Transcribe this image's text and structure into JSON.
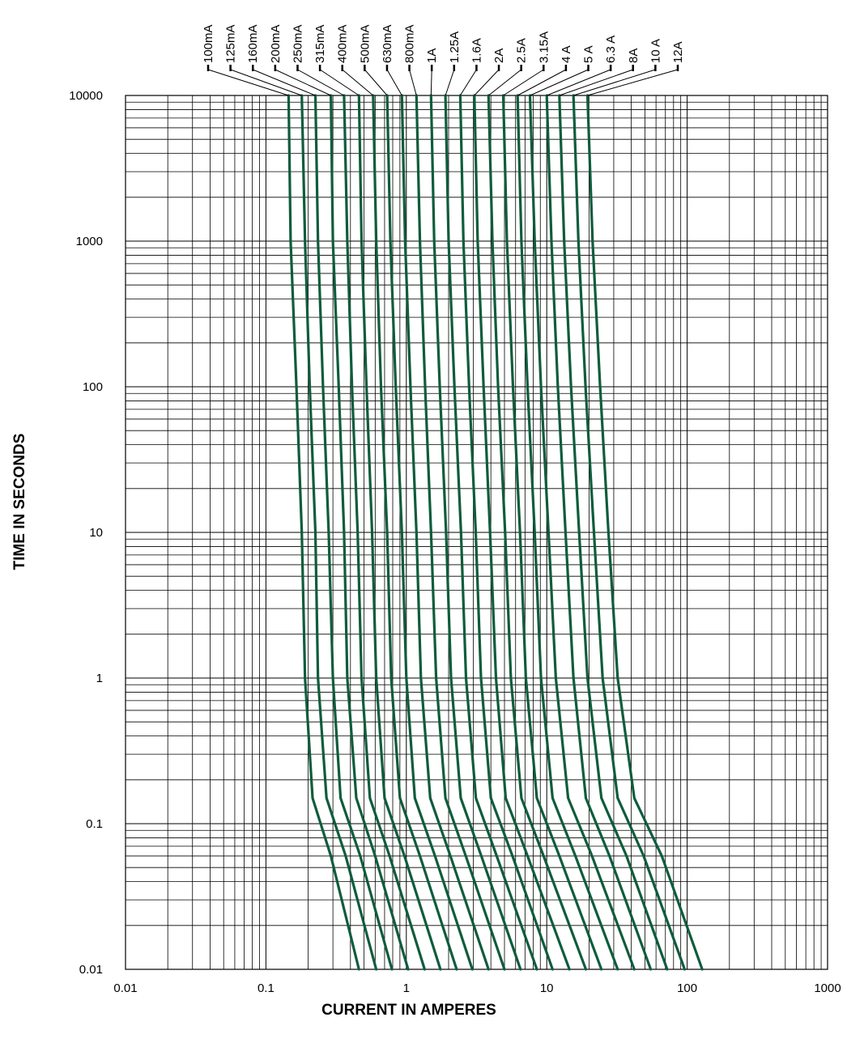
{
  "chart_data": {
    "type": "line",
    "title": "",
    "xlabel": "CURRENT IN AMPERES",
    "ylabel": "TIME IN SECONDS",
    "x_scale": "log",
    "y_scale": "log",
    "xlim": [
      0.01,
      1000
    ],
    "ylim": [
      0.01,
      10000
    ],
    "x_ticks": [
      "0.01",
      "0.1",
      "1",
      "10",
      "100",
      "1000"
    ],
    "y_ticks": [
      "0.01",
      "0.1",
      "1",
      "10",
      "100",
      "1000",
      "10000"
    ],
    "grid": true,
    "legend_placement": "top",
    "curve_color": "#0f5c3d",
    "series": [
      {
        "name": "100mA",
        "points": [
          [
            0.145,
            10000
          ],
          [
            0.15,
            1000
          ],
          [
            0.165,
            100
          ],
          [
            0.18,
            10
          ],
          [
            0.19,
            1
          ],
          [
            0.215,
            0.15
          ],
          [
            0.29,
            0.06
          ],
          [
            0.46,
            0.01
          ]
        ]
      },
      {
        "name": "125mA",
        "points": [
          [
            0.18,
            10000
          ],
          [
            0.19,
            1000
          ],
          [
            0.205,
            100
          ],
          [
            0.225,
            10
          ],
          [
            0.235,
            1
          ],
          [
            0.27,
            0.15
          ],
          [
            0.37,
            0.06
          ],
          [
            0.61,
            0.01
          ]
        ]
      },
      {
        "name": "160mA",
        "points": [
          [
            0.225,
            10000
          ],
          [
            0.235,
            1000
          ],
          [
            0.255,
            100
          ],
          [
            0.28,
            10
          ],
          [
            0.3,
            1
          ],
          [
            0.34,
            0.15
          ],
          [
            0.47,
            0.06
          ],
          [
            0.79,
            0.01
          ]
        ]
      },
      {
        "name": "200mA",
        "points": [
          [
            0.29,
            10000
          ],
          [
            0.3,
            1000
          ],
          [
            0.33,
            100
          ],
          [
            0.36,
            10
          ],
          [
            0.38,
            1
          ],
          [
            0.44,
            0.15
          ],
          [
            0.6,
            0.06
          ],
          [
            1.03,
            0.01
          ]
        ]
      },
      {
        "name": "250mA",
        "points": [
          [
            0.36,
            10000
          ],
          [
            0.38,
            1000
          ],
          [
            0.41,
            100
          ],
          [
            0.45,
            10
          ],
          [
            0.48,
            1
          ],
          [
            0.55,
            0.15
          ],
          [
            0.76,
            0.06
          ],
          [
            1.35,
            0.01
          ]
        ]
      },
      {
        "name": "315mA",
        "points": [
          [
            0.46,
            10000
          ],
          [
            0.48,
            1000
          ],
          [
            0.52,
            100
          ],
          [
            0.57,
            10
          ],
          [
            0.61,
            1
          ],
          [
            0.7,
            0.15
          ],
          [
            0.97,
            0.06
          ],
          [
            1.75,
            0.01
          ]
        ]
      },
      {
        "name": "400mA",
        "points": [
          [
            0.58,
            10000
          ],
          [
            0.61,
            1000
          ],
          [
            0.66,
            100
          ],
          [
            0.73,
            10
          ],
          [
            0.78,
            1
          ],
          [
            0.9,
            0.15
          ],
          [
            1.25,
            0.06
          ],
          [
            2.28,
            0.01
          ]
        ]
      },
      {
        "name": "500mA",
        "points": [
          [
            0.73,
            10000
          ],
          [
            0.77,
            1000
          ],
          [
            0.84,
            100
          ],
          [
            0.93,
            10
          ],
          [
            1.0,
            1
          ],
          [
            1.15,
            0.15
          ],
          [
            1.6,
            0.06
          ],
          [
            2.95,
            0.01
          ]
        ]
      },
      {
        "name": "630mA",
        "points": [
          [
            0.93,
            10000
          ],
          [
            0.98,
            1000
          ],
          [
            1.07,
            100
          ],
          [
            1.18,
            10
          ],
          [
            1.27,
            1
          ],
          [
            1.48,
            0.15
          ],
          [
            2.06,
            0.06
          ],
          [
            3.85,
            0.01
          ]
        ]
      },
      {
        "name": "800mA",
        "points": [
          [
            1.18,
            10000
          ],
          [
            1.25,
            1000
          ],
          [
            1.36,
            100
          ],
          [
            1.5,
            10
          ],
          [
            1.63,
            1
          ],
          [
            1.9,
            0.15
          ],
          [
            2.65,
            0.06
          ],
          [
            5.0,
            0.01
          ]
        ]
      },
      {
        "name": "1A",
        "points": [
          [
            1.5,
            10000
          ],
          [
            1.58,
            1000
          ],
          [
            1.73,
            100
          ],
          [
            1.92,
            10
          ],
          [
            2.08,
            1
          ],
          [
            2.44,
            0.15
          ],
          [
            3.42,
            0.06
          ],
          [
            6.5,
            0.01
          ]
        ]
      },
      {
        "name": "1.25A",
        "points": [
          [
            1.9,
            10000
          ],
          [
            2.0,
            1000
          ],
          [
            2.2,
            100
          ],
          [
            2.45,
            10
          ],
          [
            2.66,
            1
          ],
          [
            3.13,
            0.15
          ],
          [
            4.4,
            0.06
          ],
          [
            8.5,
            0.01
          ]
        ]
      },
      {
        "name": "1.6A",
        "points": [
          [
            2.42,
            10000
          ],
          [
            2.55,
            1000
          ],
          [
            2.8,
            100
          ],
          [
            3.12,
            10
          ],
          [
            3.4,
            1
          ],
          [
            4.0,
            0.15
          ],
          [
            5.7,
            0.06
          ],
          [
            11.0,
            0.01
          ]
        ]
      },
      {
        "name": "2A",
        "points": [
          [
            3.05,
            10000
          ],
          [
            3.22,
            1000
          ],
          [
            3.55,
            100
          ],
          [
            3.95,
            10
          ],
          [
            4.35,
            1
          ],
          [
            5.1,
            0.15
          ],
          [
            7.3,
            0.06
          ],
          [
            14.5,
            0.01
          ]
        ]
      },
      {
        "name": "2.5A",
        "points": [
          [
            3.85,
            10000
          ],
          [
            4.1,
            1000
          ],
          [
            4.5,
            100
          ],
          [
            5.05,
            10
          ],
          [
            5.55,
            1
          ],
          [
            6.6,
            0.15
          ],
          [
            9.5,
            0.06
          ],
          [
            19.0,
            0.01
          ]
        ]
      },
      {
        "name": "3.15A",
        "points": [
          [
            4.9,
            10000
          ],
          [
            5.2,
            1000
          ],
          [
            5.75,
            100
          ],
          [
            6.45,
            10
          ],
          [
            7.1,
            1
          ],
          [
            8.5,
            0.15
          ],
          [
            12.3,
            0.06
          ],
          [
            24.5,
            0.01
          ]
        ]
      },
      {
        "name": "4 A",
        "points": [
          [
            6.2,
            10000
          ],
          [
            6.6,
            1000
          ],
          [
            7.3,
            100
          ],
          [
            8.2,
            10
          ],
          [
            9.1,
            1
          ],
          [
            11.0,
            0.15
          ],
          [
            16.0,
            0.06
          ],
          [
            32.0,
            0.01
          ]
        ]
      },
      {
        "name": "5 A",
        "points": [
          [
            7.6,
            10000
          ],
          [
            8.2,
            1000
          ],
          [
            9.1,
            100
          ],
          [
            10.3,
            10
          ],
          [
            11.6,
            1
          ],
          [
            14.2,
            0.15
          ],
          [
            21.0,
            0.06
          ],
          [
            42.0,
            0.01
          ]
        ]
      },
      {
        "name": "6.3 A",
        "points": [
          [
            10.0,
            10000
          ],
          [
            10.8,
            1000
          ],
          [
            12.0,
            100
          ],
          [
            13.6,
            10
          ],
          [
            15.5,
            1
          ],
          [
            19.0,
            0.15
          ],
          [
            28.0,
            0.06
          ],
          [
            55.0,
            0.01
          ]
        ]
      },
      {
        "name": "8A",
        "points": [
          [
            12.3,
            10000
          ],
          [
            13.3,
            1000
          ],
          [
            14.9,
            100
          ],
          [
            17.0,
            10
          ],
          [
            19.5,
            1
          ],
          [
            24.5,
            0.15
          ],
          [
            37.0,
            0.06
          ],
          [
            72.0,
            0.01
          ]
        ]
      },
      {
        "name": "10 A",
        "points": [
          [
            15.5,
            10000
          ],
          [
            16.8,
            1000
          ],
          [
            18.9,
            100
          ],
          [
            21.7,
            10
          ],
          [
            25.0,
            1
          ],
          [
            32.0,
            0.15
          ],
          [
            49.0,
            0.06
          ],
          [
            96.0,
            0.01
          ]
        ]
      },
      {
        "name": "12A",
        "points": [
          [
            19.5,
            10000
          ],
          [
            21.2,
            1000
          ],
          [
            24.0,
            100
          ],
          [
            27.5,
            10
          ],
          [
            32.0,
            1
          ],
          [
            42.0,
            0.15
          ],
          [
            66.0,
            0.06
          ],
          [
            128.0,
            0.01
          ]
        ]
      }
    ]
  }
}
